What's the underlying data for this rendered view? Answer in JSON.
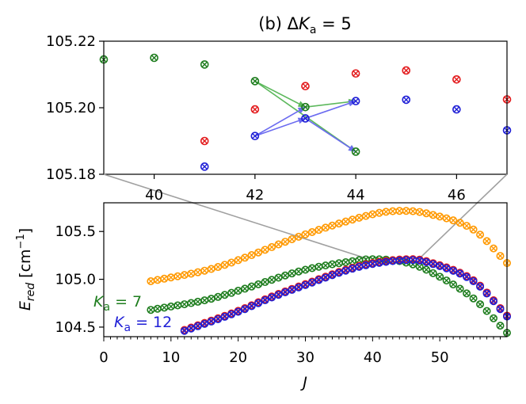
{
  "chart_data": [
    {
      "type": "scatter",
      "title": "(b)  ΔKa = 5",
      "title_parts": {
        "prefix": "(b)  Δ",
        "sym": "K",
        "sub": "a",
        "suffix": " = 5"
      },
      "xlim": [
        39,
        47
      ],
      "ylim": [
        105.18,
        105.22
      ],
      "xticks": [
        40,
        42,
        44,
        46
      ],
      "yticks": [
        105.18,
        105.2,
        105.22
      ],
      "ytick_labels": [
        "105.18",
        "105.20",
        "105.22"
      ],
      "series": [
        {
          "name": "green",
          "color": "#1e7d1e",
          "points": [
            [
              39,
              105.2145
            ],
            [
              40,
              105.215
            ],
            [
              41,
              105.213
            ],
            [
              42,
              105.208
            ],
            [
              43,
              105.2002
            ],
            [
              44,
              105.1868
            ]
          ]
        },
        {
          "name": "red",
          "color": "#e31a1c",
          "points": [
            [
              41,
              105.19
            ],
            [
              42,
              105.1995
            ],
            [
              43,
              105.2065
            ],
            [
              44,
              105.2103
            ],
            [
              45,
              105.2112
            ],
            [
              46,
              105.2085
            ],
            [
              47,
              105.2025
            ]
          ]
        },
        {
          "name": "blue",
          "color": "#1f1fd6",
          "points": [
            [
              41,
              105.1823
            ],
            [
              42,
              105.1915
            ],
            [
              43,
              105.1968
            ],
            [
              44,
              105.202
            ],
            [
              45,
              105.2024
            ],
            [
              46,
              105.1995
            ],
            [
              47,
              105.1932
            ]
          ]
        }
      ],
      "arrows": [
        {
          "color": "#5cb85c",
          "from": [
            42,
            105.208
          ],
          "to": [
            43,
            105.2002
          ]
        },
        {
          "color": "#5cb85c",
          "from": [
            42,
            105.208
          ],
          "to": [
            44,
            105.1868
          ]
        },
        {
          "color": "#5cb85c",
          "from": [
            43,
            105.2002
          ],
          "to": [
            44,
            105.202
          ]
        },
        {
          "color": "#6b6bf0",
          "from": [
            42,
            105.1915
          ],
          "to": [
            43,
            105.2002
          ]
        },
        {
          "color": "#6b6bf0",
          "from": [
            42,
            105.1915
          ],
          "to": [
            43,
            105.1968
          ]
        },
        {
          "color": "#6b6bf0",
          "from": [
            43,
            105.1968
          ],
          "to": [
            44,
            105.202
          ]
        },
        {
          "color": "#6b6bf0",
          "from": [
            43,
            105.1968
          ],
          "to": [
            44,
            105.1868
          ]
        }
      ]
    },
    {
      "type": "scatter",
      "xlabel": "J",
      "ylabel": "Ered [cm⁻¹]",
      "ylabel_parts": {
        "sym": "E",
        "sub": "red",
        "unit": " [cm",
        "sup": "−1",
        "close": "]"
      },
      "xlim": [
        0,
        60
      ],
      "ylim": [
        104.4,
        105.8
      ],
      "xticks": [
        0,
        10,
        20,
        30,
        40,
        50
      ],
      "yticks": [
        104.5,
        105.0,
        105.5
      ],
      "ytick_labels": [
        "104.5",
        "105.0",
        "105.5"
      ],
      "series": [
        {
          "name": "orange",
          "color": "#ff9900",
          "x_start": 7,
          "x_end": 60,
          "anchors": [
            [
              7,
              104.98
            ],
            [
              15,
              105.09
            ],
            [
              20,
              105.2
            ],
            [
              30,
              105.47
            ],
            [
              40,
              105.68
            ],
            [
              44,
              105.715
            ],
            [
              48,
              105.69
            ],
            [
              55,
              105.52
            ],
            [
              60,
              105.17
            ]
          ]
        },
        {
          "name": "Ka = 7",
          "color": "#1e7d1e",
          "x_start": 7,
          "x_end": 60,
          "anchors": [
            [
              7,
              104.68
            ],
            [
              15,
              104.78
            ],
            [
              20,
              104.88
            ],
            [
              30,
              105.1
            ],
            [
              38,
              105.2
            ],
            [
              40,
              105.21
            ],
            [
              44,
              105.19
            ],
            [
              48,
              105.1
            ],
            [
              55,
              104.8
            ],
            [
              60,
              104.44
            ]
          ]
        },
        {
          "name": "red",
          "color": "#e31a1c",
          "x_start": 12,
          "x_end": 60,
          "anchors": [
            [
              12,
              104.47
            ],
            [
              20,
              104.67
            ],
            [
              25,
              104.82
            ],
            [
              30,
              104.95
            ],
            [
              36,
              105.1
            ],
            [
              40,
              105.17
            ],
            [
              45,
              105.21
            ],
            [
              48,
              105.19
            ],
            [
              55,
              104.99
            ],
            [
              60,
              104.62
            ]
          ]
        },
        {
          "name": "Ka = 12",
          "color": "#1f1fd6",
          "x_start": 12,
          "x_end": 60,
          "anchors": [
            [
              12,
              104.46
            ],
            [
              20,
              104.66
            ],
            [
              25,
              104.81
            ],
            [
              30,
              104.94
            ],
            [
              36,
              105.09
            ],
            [
              40,
              105.16
            ],
            [
              45,
              105.2
            ],
            [
              48,
              105.18
            ],
            [
              55,
              104.98
            ],
            [
              60,
              104.61
            ]
          ]
        }
      ],
      "annotations": [
        {
          "sym": "K",
          "sub": "a",
          "text": " = 7",
          "color": "#1e7d1e"
        },
        {
          "sym": "K",
          "sub": "a",
          "text": " = 12",
          "color": "#1f1fd6"
        }
      ],
      "zoom_box": {
        "x": [
          39,
          47
        ],
        "y": [
          105.18,
          105.22
        ]
      }
    }
  ]
}
